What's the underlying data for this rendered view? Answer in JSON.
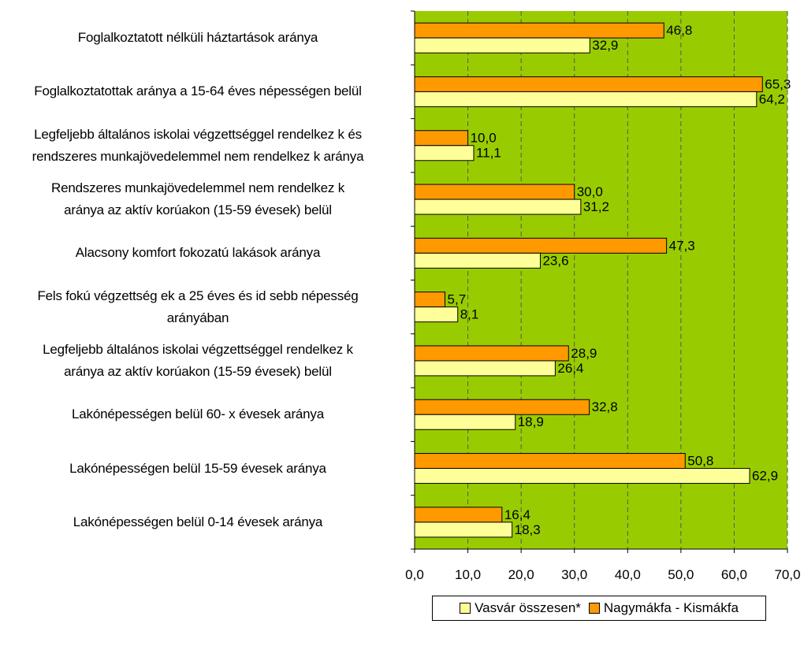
{
  "chart_data": {
    "type": "bar",
    "orientation": "horizontal",
    "categories": [
      "Foglalkoztatott nélküli háztartások aránya",
      "Foglalkoztatottak aránya a 15-64 éves népességen belül",
      "Legfeljebb általános iskolai végzettséggel rendelkez  k és\nrendszeres munkajövedelemmel nem rendelkez  k aránya",
      "Rendszeres munkajövedelemmel nem rendelkez  k\naránya az aktív korúakon (15-59 évesek) belül",
      "Alacsony komfort fokozatú lakások aránya",
      "Fels  fokú végzettség  ek a 25 éves és id  sebb népesség\narányában",
      "Legfeljebb általános iskolai végzettséggel rendelkez  k\naránya az aktív korúakon (15-59 évesek) belül",
      "Lakónépességen belül 60- x évesek aránya",
      "Lakónépességen belül 15-59 évesek aránya",
      "Lakónépességen belül 0-14 évesek aránya"
    ],
    "series": [
      {
        "name": "Nagymákfa - Kismákfa",
        "color": "#FF9900",
        "values": [
          46.8,
          65.3,
          10.0,
          30.0,
          47.3,
          5.7,
          28.9,
          32.8,
          50.8,
          16.4
        ],
        "labels": [
          "46,8",
          "65,3",
          "10,0",
          "30,0",
          "47,3",
          "5,7",
          "28,9",
          "32,8",
          "50,8",
          "16,4"
        ]
      },
      {
        "name": "Vasvár összesen*",
        "color": "#FFFF99",
        "values": [
          32.9,
          64.2,
          11.1,
          31.2,
          23.6,
          8.1,
          26.4,
          18.9,
          62.9,
          18.3
        ],
        "labels": [
          "32,9",
          "64,2",
          "11,1",
          "31,2",
          "23,6",
          "8,1",
          "26,4",
          "18,9",
          "62,9",
          "18,3"
        ]
      }
    ],
    "xlim": [
      0,
      70
    ],
    "xticks": [
      0,
      10,
      20,
      30,
      40,
      50,
      60,
      70
    ],
    "xtick_labels": [
      "0,0",
      "10,0",
      "20,0",
      "30,0",
      "40,0",
      "50,0",
      "60,0",
      "70,0"
    ],
    "plot_background": "#99CC00",
    "grid": "vertical dashed",
    "legend_position": "bottom-right",
    "legend_order": [
      "Vasvár összesen*",
      "Nagymákfa - Kismákfa"
    ]
  }
}
